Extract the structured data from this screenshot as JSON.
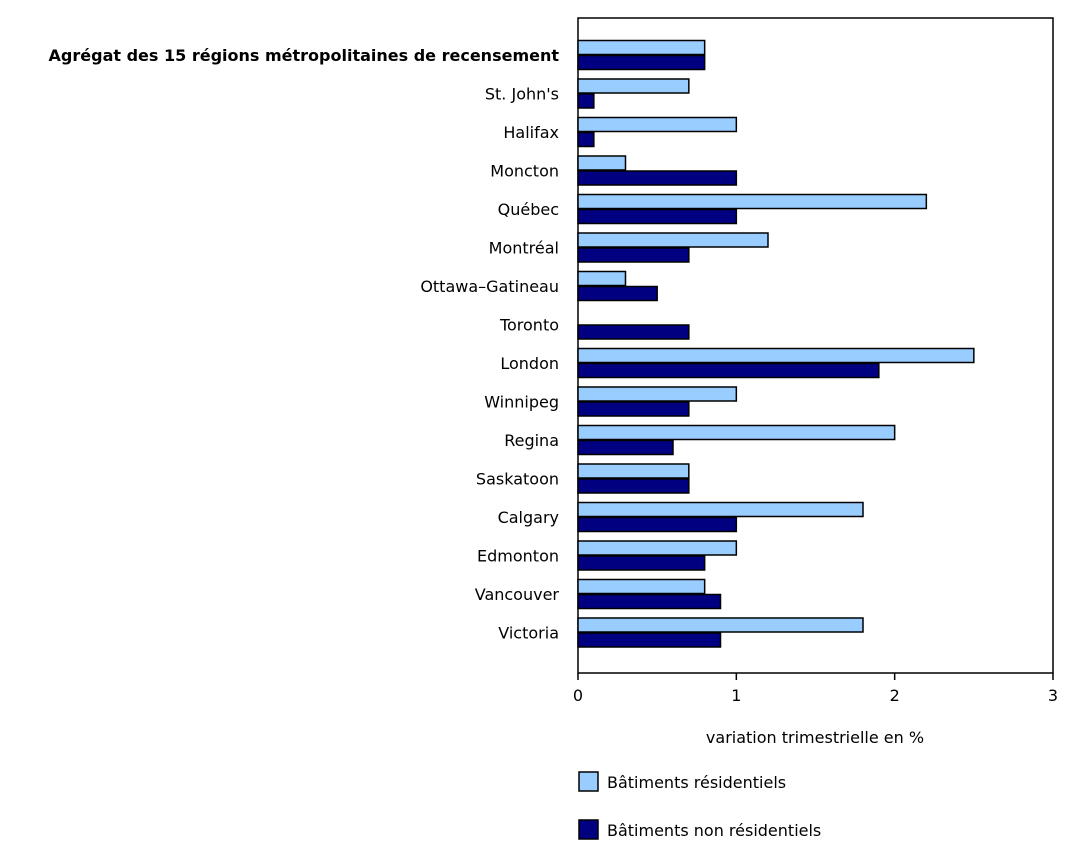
{
  "chart_data": {
    "type": "bar",
    "orientation": "horizontal",
    "title": "",
    "xlabel": "variation trimestrielle en %",
    "ylabel": "",
    "xlim": [
      0,
      3
    ],
    "xticks": [
      "0",
      "1",
      "2",
      "3"
    ],
    "grid": false,
    "legend_placement": "bottom",
    "categories": [
      "Agrégat des 15 régions métropolitaines de recensement",
      "St. John's",
      "Halifax",
      "Moncton",
      "Québec",
      "Montréal",
      "Ottawa–Gatineau",
      "Toronto",
      "London",
      "Winnipeg",
      "Regina",
      "Saskatoon",
      "Calgary",
      "Edmonton",
      "Vancouver",
      "Victoria"
    ],
    "bold_categories": [
      "Agrégat des 15 régions métropolitaines de recensement"
    ],
    "series": [
      {
        "name": "Bâtiments résidentiels",
        "color": "#99CCFF",
        "values": [
          0.8,
          0.7,
          1.0,
          0.3,
          2.2,
          1.2,
          0.3,
          0.0,
          2.5,
          1.0,
          2.0,
          0.7,
          1.8,
          1.0,
          0.8,
          1.8
        ]
      },
      {
        "name": "Bâtiments non résidentiels",
        "color": "#000080",
        "values": [
          0.8,
          0.1,
          0.1,
          1.0,
          1.0,
          0.7,
          0.5,
          0.7,
          1.9,
          0.7,
          0.6,
          0.7,
          1.0,
          0.8,
          0.9,
          0.9
        ]
      }
    ]
  }
}
